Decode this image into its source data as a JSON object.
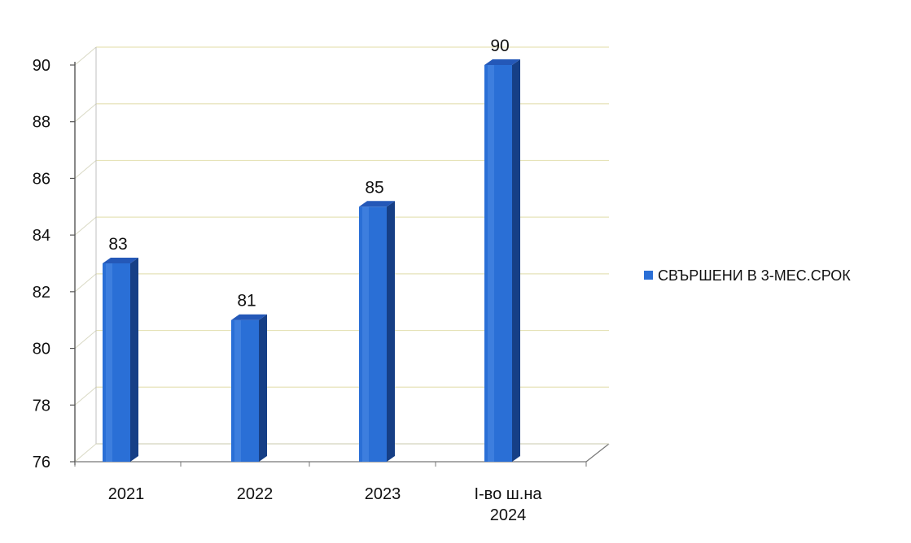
{
  "chart_data": {
    "type": "bar",
    "categories": [
      [
        "2021"
      ],
      [
        "2022"
      ],
      [
        "2023"
      ],
      [
        "I-во ш.на",
        "2024"
      ]
    ],
    "series": [
      {
        "name": "СВЪРШЕНИ В 3-МЕС.СРОК",
        "values": [
          83,
          81,
          85,
          90
        ],
        "labels": [
          "83",
          "81",
          "85",
          "90"
        ],
        "color": "#2a6fd6"
      }
    ],
    "yticks": [
      76,
      78,
      80,
      82,
      84,
      86,
      88,
      90
    ],
    "ylim": [
      76,
      90
    ],
    "xlabel": "",
    "ylabel": "",
    "title": "",
    "grid": true,
    "legend_position": "right",
    "style": "3d-column"
  }
}
